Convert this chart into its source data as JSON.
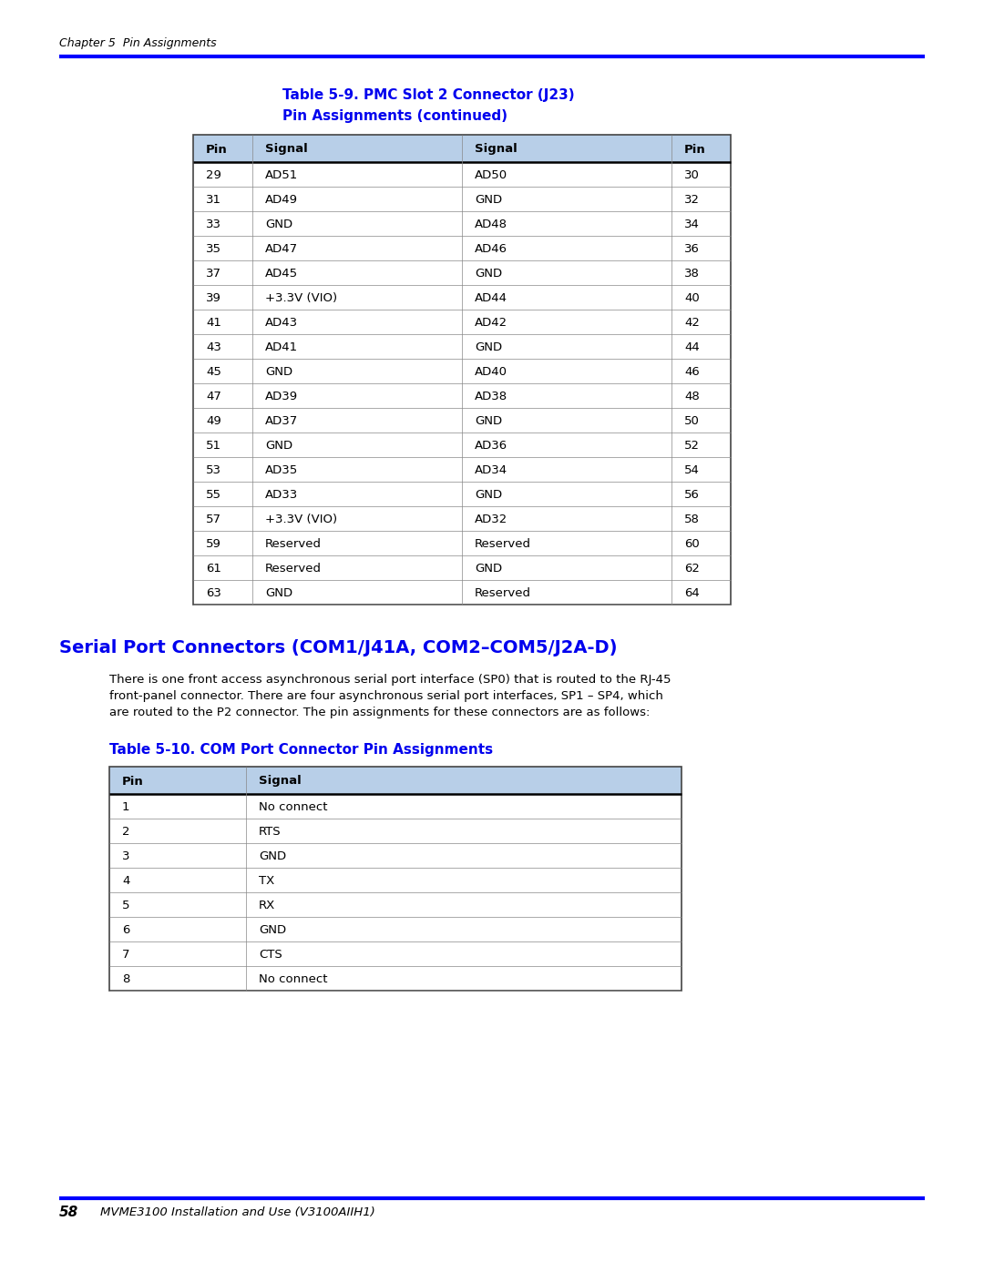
{
  "header_text": "Chapter 5  Pin Assignments",
  "footer_text": "58     MVME3100 Installation and Use (V3100AIIH1)",
  "blue_color": "#0000FF",
  "table1_title_line1": "Table 5-9. PMC Slot 2 Connector (J23)",
  "table1_title_line2": "Pin Assignments (continued)",
  "table1_headers": [
    "Pin",
    "Signal",
    "Signal",
    "Pin"
  ],
  "table1_rows": [
    [
      "29",
      "AD51",
      "AD50",
      "30"
    ],
    [
      "31",
      "AD49",
      "GND",
      "32"
    ],
    [
      "33",
      "GND",
      "AD48",
      "34"
    ],
    [
      "35",
      "AD47",
      "AD46",
      "36"
    ],
    [
      "37",
      "AD45",
      "GND",
      "38"
    ],
    [
      "39",
      "+3.3V (VIO)",
      "AD44",
      "40"
    ],
    [
      "41",
      "AD43",
      "AD42",
      "42"
    ],
    [
      "43",
      "AD41",
      "GND",
      "44"
    ],
    [
      "45",
      "GND",
      "AD40",
      "46"
    ],
    [
      "47",
      "AD39",
      "AD38",
      "48"
    ],
    [
      "49",
      "AD37",
      "GND",
      "50"
    ],
    [
      "51",
      "GND",
      "AD36",
      "52"
    ],
    [
      "53",
      "AD35",
      "AD34",
      "54"
    ],
    [
      "55",
      "AD33",
      "GND",
      "56"
    ],
    [
      "57",
      "+3.3V (VIO)",
      "AD32",
      "58"
    ],
    [
      "59",
      "Reserved",
      "Reserved",
      "60"
    ],
    [
      "61",
      "Reserved",
      "GND",
      "62"
    ],
    [
      "63",
      "GND",
      "Reserved",
      "64"
    ]
  ],
  "section_title": "Serial Port Connectors (COM1/J41A, COM2–COM5/J2A-D)",
  "section_body_lines": [
    "There is one front access asynchronous serial port interface (SP0) that is routed to the RJ-45",
    "front-panel connector. There are four asynchronous serial port interfaces, SP1 – SP4, which",
    "are routed to the P2 connector. The pin assignments for these connectors are as follows:"
  ],
  "table2_title": "Table 5-10. COM Port Connector Pin Assignments",
  "table2_headers": [
    "Pin",
    "Signal"
  ],
  "table2_rows": [
    [
      "1",
      "No connect"
    ],
    [
      "2",
      "RTS"
    ],
    [
      "3",
      "GND"
    ],
    [
      "4",
      "TX"
    ],
    [
      "5",
      "RX"
    ],
    [
      "6",
      "GND"
    ],
    [
      "7",
      "CTS"
    ],
    [
      "8",
      "No connect"
    ]
  ],
  "header_bg": "#b8cfe8",
  "border_color": "#888888",
  "outer_border": "#444444",
  "title_blue": "#0000EE",
  "row_white": "#ffffff",
  "row_light": "#f8f8f8"
}
